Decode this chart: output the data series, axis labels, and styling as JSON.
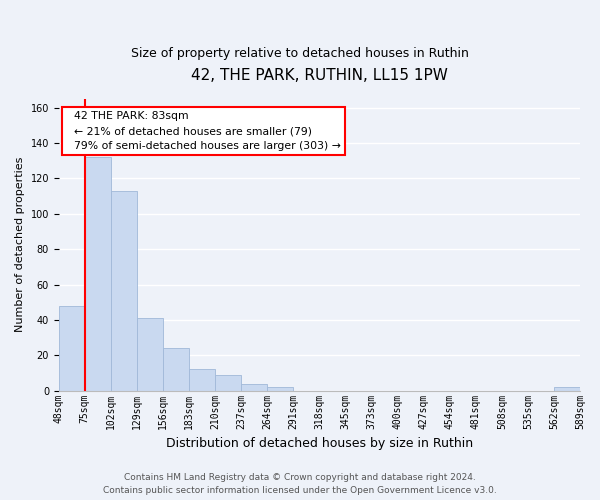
{
  "title": "42, THE PARK, RUTHIN, LL15 1PW",
  "subtitle": "Size of property relative to detached houses in Ruthin",
  "xlabel": "Distribution of detached houses by size in Ruthin",
  "ylabel": "Number of detached properties",
  "bar_values": [
    48,
    132,
    113,
    41,
    24,
    12,
    9,
    4,
    2,
    0,
    0,
    0,
    0,
    0,
    0,
    0,
    0,
    0,
    0,
    2
  ],
  "bar_labels": [
    "48sqm",
    "75sqm",
    "102sqm",
    "129sqm",
    "156sqm",
    "183sqm",
    "210sqm",
    "237sqm",
    "264sqm",
    "291sqm",
    "318sqm",
    "345sqm",
    "373sqm",
    "400sqm",
    "427sqm",
    "454sqm",
    "481sqm",
    "508sqm",
    "535sqm",
    "562sqm",
    "589sqm"
  ],
  "bar_color": "#c9d9f0",
  "bar_edge_color": "#a0b8d8",
  "red_line_x": 1,
  "ylim": [
    0,
    165
  ],
  "yticks": [
    0,
    20,
    40,
    60,
    80,
    100,
    120,
    140,
    160
  ],
  "annotation_title": "42 THE PARK: 83sqm",
  "annotation_line1": "← 21% of detached houses are smaller (79)",
  "annotation_line2": "79% of semi-detached houses are larger (303) →",
  "footer_line1": "Contains HM Land Registry data © Crown copyright and database right 2024.",
  "footer_line2": "Contains public sector information licensed under the Open Government Licence v3.0.",
  "background_color": "#eef2f9",
  "grid_color": "#ffffff",
  "title_fontsize": 11,
  "subtitle_fontsize": 9,
  "xlabel_fontsize": 9,
  "ylabel_fontsize": 8,
  "tick_fontsize": 7,
  "footer_fontsize": 6.5
}
